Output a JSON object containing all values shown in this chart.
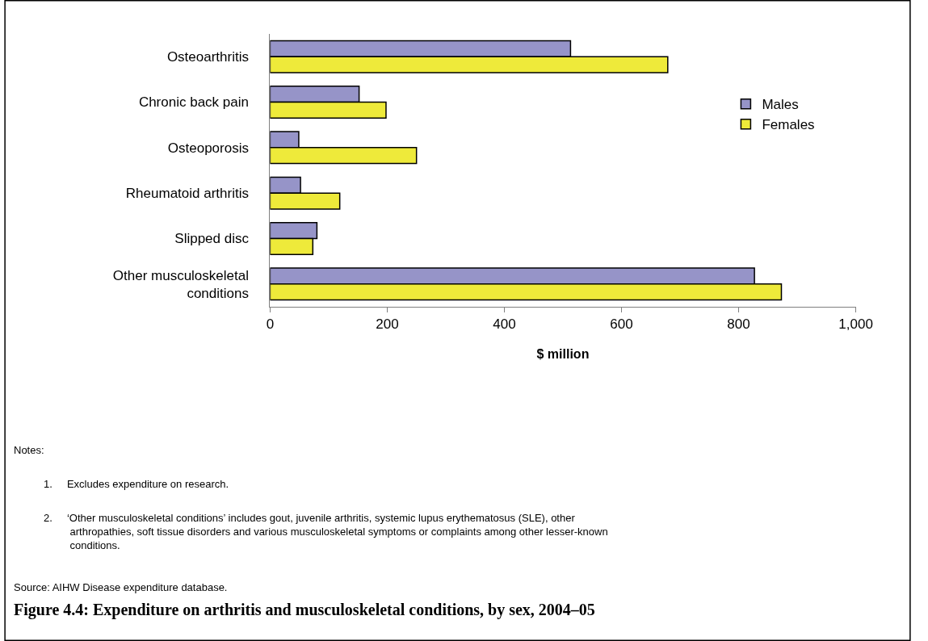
{
  "chart_data": {
    "type": "bar",
    "orientation": "horizontal",
    "title": "Figure 4.4: Expenditure on arthritis and musculoskeletal conditions, by sex, 2004–05",
    "xlabel": "$ million",
    "categories": [
      "Osteoarthritis",
      "Chronic back pain",
      "Osteoporosis",
      "Rheumatoid arthritis",
      "Slipped disc",
      "Other musculoskeletal conditions"
    ],
    "series": [
      {
        "name": "Males",
        "color": "#9694c8",
        "values": [
          513,
          152,
          49,
          52,
          80,
          827
        ]
      },
      {
        "name": "Females",
        "color": "#eeea3a",
        "values": [
          679,
          198,
          250,
          119,
          73,
          873
        ]
      }
    ],
    "xlim": [
      0,
      1000
    ],
    "xticks": [
      0,
      200,
      400,
      600,
      800,
      {
        "value": 1000,
        "label": "1,000"
      }
    ],
    "legend": "right",
    "annotations": [
      "Notes:",
      "1.     Excludes expenditure on research.",
      "2.     ‘Other musculoskeletal conditions’ includes gout, juvenile arthritis, systemic lupus erythematosus (SLE), other arthropathies, soft tissue disorders and various musculoskeletal symptoms or complaints among other lesser-known conditions.",
      "Source: AIHW Disease expenditure database."
    ]
  }
}
